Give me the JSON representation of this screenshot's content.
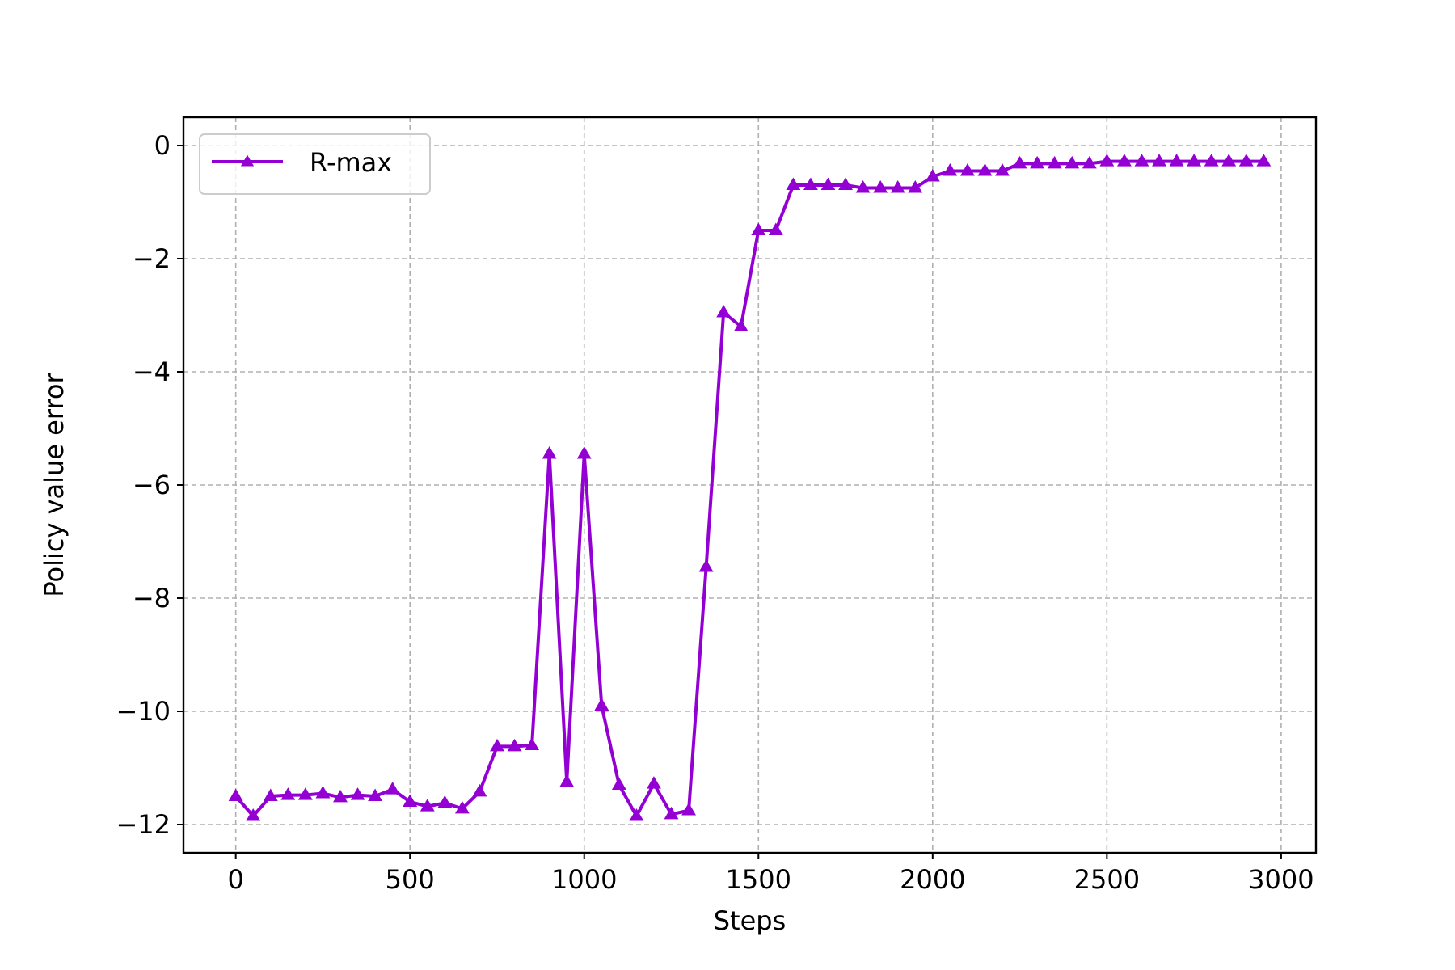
{
  "chart_data": {
    "type": "line",
    "xlabel": "Steps",
    "ylabel": "Policy value error",
    "xlim": [
      -150,
      3100
    ],
    "ylim": [
      -12.5,
      0.5
    ],
    "xticks": [
      0,
      500,
      1000,
      1500,
      2000,
      2500,
      3000
    ],
    "yticks": [
      0,
      -2,
      -4,
      -6,
      -8,
      -10,
      -12
    ],
    "xtick_labels": [
      "0",
      "500",
      "1000",
      "1500",
      "2000",
      "2500",
      "3000"
    ],
    "ytick_labels": [
      "0",
      "−2",
      "−4",
      "−6",
      "−8",
      "−10",
      "−12"
    ],
    "grid": true,
    "legend": "upper-left",
    "series": [
      {
        "name": "R-max",
        "color": "#9400d3",
        "marker": "triangle-up",
        "x": [
          0,
          50,
          100,
          150,
          200,
          250,
          300,
          350,
          400,
          450,
          500,
          550,
          600,
          650,
          700,
          750,
          800,
          850,
          900,
          950,
          1000,
          1050,
          1100,
          1150,
          1200,
          1250,
          1300,
          1350,
          1400,
          1450,
          1500,
          1550,
          1600,
          1650,
          1700,
          1750,
          1800,
          1850,
          1900,
          1950,
          2000,
          2050,
          2100,
          2150,
          2200,
          2250,
          2300,
          2350,
          2400,
          2450,
          2500,
          2550,
          2600,
          2650,
          2700,
          2750,
          2800,
          2850,
          2900,
          2950
        ],
        "y": [
          -11.5,
          -11.85,
          -11.5,
          -11.48,
          -11.48,
          -11.45,
          -11.52,
          -11.48,
          -11.5,
          -11.38,
          -11.6,
          -11.68,
          -11.62,
          -11.72,
          -11.42,
          -10.62,
          -10.62,
          -10.6,
          -5.45,
          -11.25,
          -5.45,
          -9.9,
          -11.3,
          -11.85,
          -11.28,
          -11.82,
          -11.75,
          -7.45,
          -2.95,
          -3.2,
          -1.5,
          -1.5,
          -0.7,
          -0.7,
          -0.7,
          -0.7,
          -0.75,
          -0.75,
          -0.75,
          -0.75,
          -0.55,
          -0.45,
          -0.45,
          -0.45,
          -0.45,
          -0.32,
          -0.32,
          -0.32,
          -0.32,
          -0.32,
          -0.28,
          -0.28,
          -0.28,
          -0.28,
          -0.28,
          -0.28,
          -0.28,
          -0.28,
          -0.28,
          -0.28
        ]
      }
    ]
  }
}
